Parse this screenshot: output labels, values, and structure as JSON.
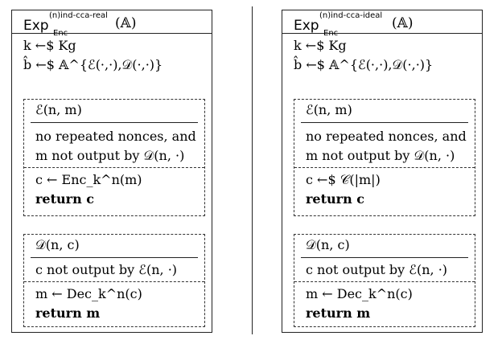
{
  "left": {
    "exp": "Exp",
    "exp_sub": "Enc",
    "exp_sup": "(n)ind-cca-real",
    "exp_arg": "(𝔸)",
    "setup1": "k ←$ Kg",
    "setup2": "b̂ ←$ 𝔸^{ℰ(·,·),𝒟(·,·)}",
    "enc_title": "ℰ(n, m)",
    "cond1": "no repeated nonces, and",
    "cond2": "m not output by 𝒟(n, ·)",
    "enc_body1": "c ← Enc_k^n(m)",
    "enc_body2": "return c",
    "dec_title": "𝒟(n, c)",
    "dec_cond": "c not output by ℰ(n, ·)",
    "dec_body1": "m ← Dec_k^n(c)",
    "dec_body2": "return m"
  },
  "right": {
    "exp": "Exp",
    "exp_sub": "Enc",
    "exp_sup": "(n)ind-cca-ideal",
    "exp_arg": "(𝔸)",
    "setup1": "k ←$ Kg",
    "setup2": "b̂ ←$ 𝔸^{ℰ(·,·),𝒟(·,·)}",
    "enc_title": "ℰ(n, m)",
    "cond1": "no repeated nonces, and",
    "cond2": "m not output by 𝒟(n, ·)",
    "enc_body1": "c ←$ 𝒞(|m|)",
    "enc_body2": "return c",
    "dec_title": "𝒟(n, c)",
    "dec_cond": "c not output by ℰ(n, ·)",
    "dec_body1": "m ← Dec_k^n(c)",
    "dec_body2": "return m"
  }
}
